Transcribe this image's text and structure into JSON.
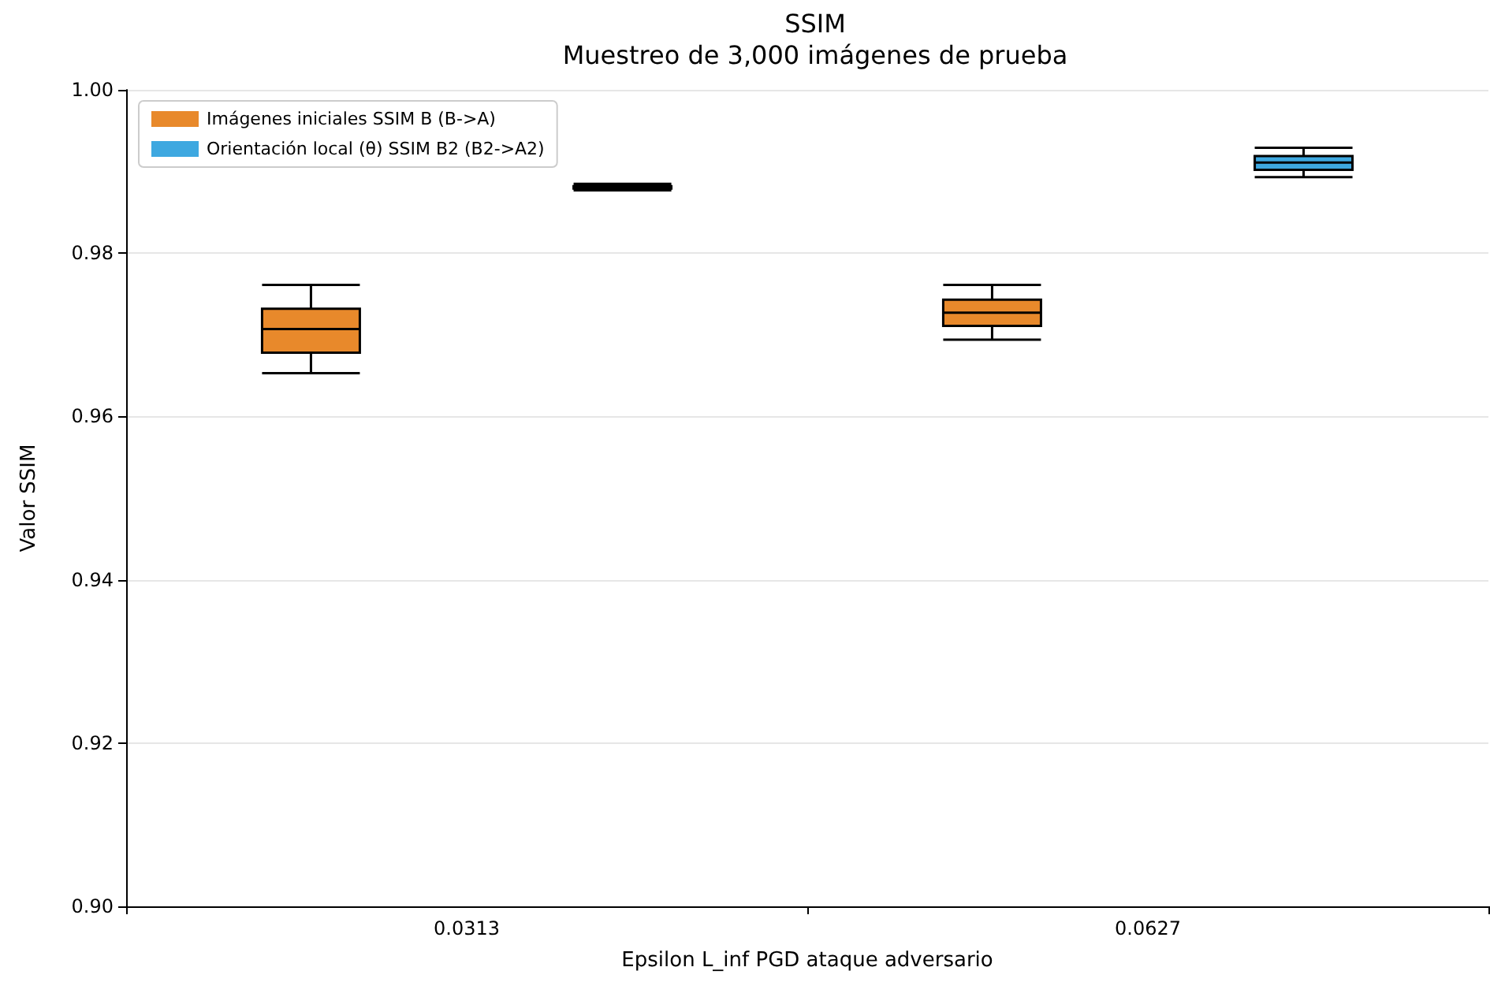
{
  "chart_data": {
    "type": "box",
    "title": "SSIM",
    "subtitle": "Muestreo de 3,000 imágenes de prueba",
    "xlabel": "Epsilon L_inf PGD ataque adversario",
    "ylabel": "Valor SSIM",
    "categories": [
      "0.0313",
      "0.0627"
    ],
    "series": [
      {
        "name": "Imágenes iniciales SSIM B (B->A)",
        "color": "#e8892b",
        "boxes": [
          {
            "low": 0.9653,
            "q1": 0.9678,
            "median": 0.9707,
            "q3": 0.9732,
            "high": 0.9761
          },
          {
            "low": 0.9694,
            "q1": 0.9711,
            "median": 0.9727,
            "q3": 0.9743,
            "high": 0.9761
          }
        ]
      },
      {
        "name": "Orientación local (θ) SSIM B2 (B2->A2)",
        "color": "#3ea8e0",
        "boxes": [
          {
            "low": 0.9877,
            "q1": 0.9879,
            "median": 0.9881,
            "q3": 0.9882,
            "high": 0.9885
          },
          {
            "low": 0.9893,
            "q1": 0.9902,
            "median": 0.9911,
            "q3": 0.9919,
            "high": 0.9929
          }
        ]
      }
    ],
    "ylim": [
      0.9,
      1.0
    ],
    "yticks": [
      {
        "value": 0.9,
        "label": "0.90"
      },
      {
        "value": 0.92,
        "label": "0.92"
      },
      {
        "value": 0.94,
        "label": "0.94"
      },
      {
        "value": 0.96,
        "label": "0.96"
      },
      {
        "value": 0.98,
        "label": "0.98"
      },
      {
        "value": 1.0,
        "label": "1.00"
      }
    ],
    "grid": "y",
    "legend": "top left"
  }
}
